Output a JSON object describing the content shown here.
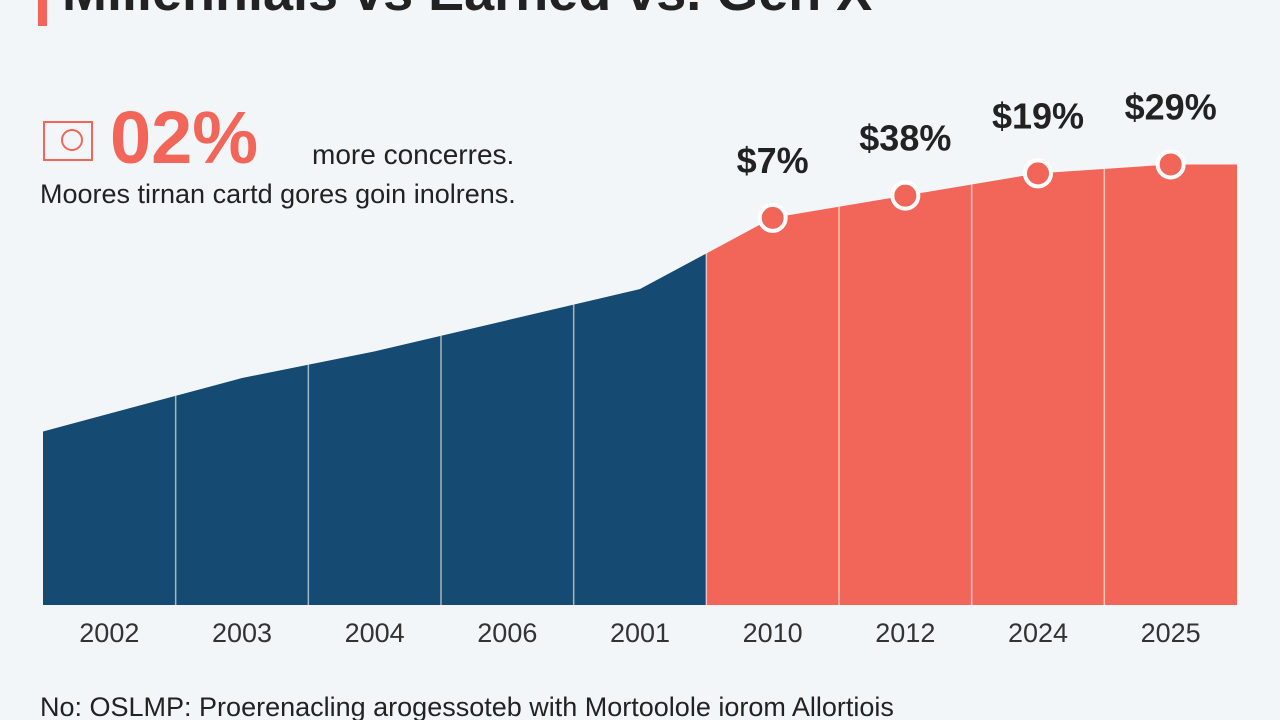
{
  "chart_data": {
    "type": "area",
    "title": "Millennials vs Earned vs. Gen X",
    "headline": "02%",
    "headline_text": "more concerres.",
    "subtitle": "Moores tirnan cartd gores goin inolrens.",
    "footnote": "No: OSLMP: Proerenacling arogessoteb with Mortoolole iorom Allortiois",
    "categories": [
      "2002",
      "2003",
      "2004",
      "2006",
      "2001",
      "2010",
      "2012",
      "2024",
      "2025"
    ],
    "series": [
      {
        "color": "#154b72",
        "markers": false,
        "values": [
          43,
          51,
          57,
          64,
          71,
          null,
          null,
          null,
          null
        ]
      },
      {
        "color": "#f2665a",
        "markers": true,
        "values": [
          null,
          null,
          null,
          null,
          null,
          87,
          92,
          97,
          99
        ]
      }
    ],
    "annotations": [
      "$7%",
      "$38%",
      "$19%",
      "$29%"
    ],
    "ylim": [
      0,
      100
    ]
  }
}
